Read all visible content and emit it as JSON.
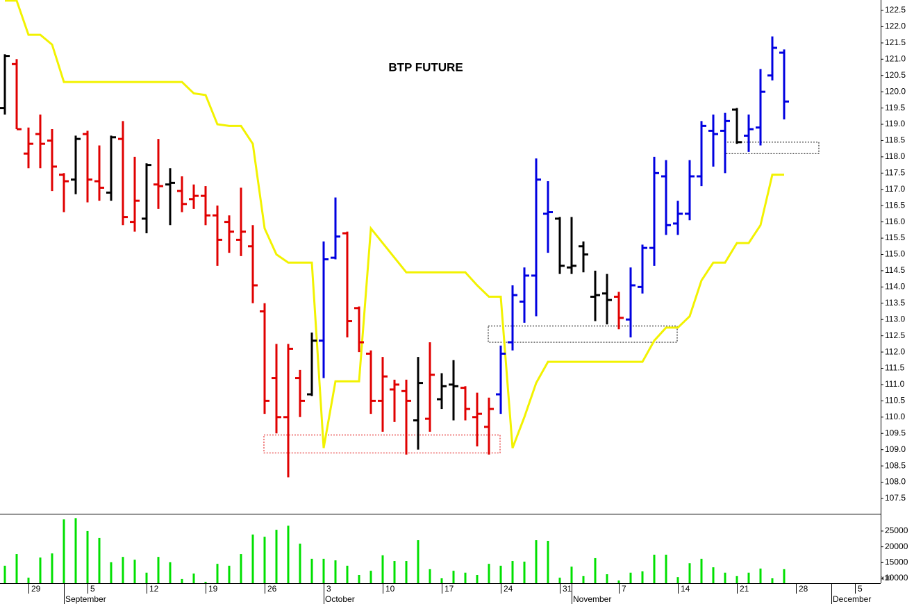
{
  "chart_data": {
    "type": "ohlc",
    "title": "BTP FUTURE",
    "categories": [
      null,
      null,
      "29",
      null,
      null,
      null,
      null,
      "5",
      null,
      null,
      null,
      null,
      "12",
      null,
      null,
      null,
      null,
      "19",
      null,
      null,
      null,
      null,
      "26",
      null,
      null,
      null,
      null,
      "3",
      null,
      null,
      null,
      null,
      "10",
      null,
      null,
      null,
      null,
      "17",
      null,
      null,
      null,
      null,
      "24",
      null,
      null,
      null,
      null,
      "31",
      null,
      null,
      null,
      null,
      "7",
      null,
      null,
      null,
      null,
      "14",
      null,
      null,
      null,
      null,
      "21",
      null,
      null,
      null,
      null,
      "28",
      null,
      null,
      null,
      null,
      "5",
      null,
      null
    ],
    "month_categories": [
      null,
      null,
      null,
      null,
      null,
      "September",
      null,
      null,
      null,
      null,
      null,
      null,
      null,
      null,
      null,
      null,
      null,
      null,
      null,
      null,
      null,
      null,
      null,
      null,
      null,
      null,
      null,
      "October",
      null,
      null,
      null,
      null,
      null,
      null,
      null,
      null,
      null,
      null,
      null,
      null,
      null,
      null,
      null,
      null,
      null,
      null,
      null,
      null,
      "November",
      null,
      null,
      null,
      null,
      null,
      null,
      null,
      null,
      null,
      null,
      null,
      null,
      null,
      null,
      null,
      null,
      null,
      null,
      null,
      null,
      null,
      "December",
      null,
      null,
      null,
      null
    ],
    "open": [
      119.5,
      120.85,
      118.1,
      118.7,
      118.5,
      117.45,
      117.3,
      118.7,
      117.25,
      116.9,
      118.55,
      116.0,
      116.1,
      117.15,
      117.15,
      116.95,
      116.7,
      116.8,
      116.2,
      116.0,
      115.45,
      115.25,
      113.25,
      111.2,
      110.0,
      111.2,
      110.7,
      112.35,
      114.9,
      115.65,
      113.35,
      111.95,
      110.5,
      110.85,
      110.8,
      109.9,
      109.95,
      110.55,
      111.0,
      110.9,
      110.0,
      109.7,
      110.7,
      112.3,
      113.55,
      114.35,
      116.25,
      116.1,
      114.6,
      115.25,
      113.7,
      113.8,
      113.7,
      113.0,
      114.0,
      115.2,
      117.4,
      115.95,
      116.25,
      117.4,
      118.8,
      118.8,
      119.45,
      118.65,
      118.9,
      120.5,
      121.2,
      null,
      null,
      null,
      null,
      null,
      null,
      null,
      null
    ],
    "high": [
      121.15,
      121.0,
      118.9,
      119.3,
      118.85,
      117.5,
      118.65,
      118.8,
      118.35,
      118.65,
      119.1,
      118.0,
      117.8,
      118.55,
      117.65,
      117.4,
      117.15,
      117.1,
      116.5,
      116.2,
      117.05,
      115.9,
      113.5,
      112.25,
      112.25,
      111.45,
      112.6,
      115.4,
      116.75,
      115.7,
      113.4,
      112.05,
      111.85,
      111.15,
      111.15,
      111.85,
      112.3,
      111.35,
      111.75,
      110.95,
      110.75,
      110.6,
      112.2,
      114.05,
      114.6,
      117.95,
      117.25,
      116.15,
      116.15,
      115.4,
      114.5,
      114.4,
      113.85,
      114.6,
      115.3,
      118.0,
      117.9,
      116.65,
      117.9,
      119.1,
      119.3,
      119.35,
      119.5,
      119.3,
      120.7,
      121.7,
      121.3,
      null,
      null,
      null,
      null,
      null,
      null,
      null,
      null
    ],
    "low": [
      119.3,
      118.85,
      117.65,
      117.65,
      116.95,
      116.3,
      116.85,
      116.6,
      116.65,
      116.65,
      115.9,
      115.7,
      115.65,
      116.4,
      115.9,
      116.3,
      116.4,
      115.9,
      114.65,
      115.05,
      114.95,
      113.5,
      110.1,
      109.5,
      108.15,
      110.0,
      110.65,
      111.2,
      114.85,
      112.45,
      112.0,
      110.1,
      109.55,
      109.85,
      108.85,
      109.0,
      109.55,
      110.25,
      109.9,
      109.9,
      109.1,
      108.85,
      110.1,
      112.05,
      112.9,
      113.1,
      115.05,
      114.4,
      114.4,
      114.45,
      112.95,
      112.85,
      112.7,
      112.45,
      113.8,
      114.65,
      115.6,
      115.6,
      116.05,
      117.1,
      117.7,
      117.5,
      118.4,
      118.15,
      118.35,
      120.35,
      119.15,
      null,
      null,
      null,
      null,
      null,
      null,
      null,
      null
    ],
    "close": [
      121.1,
      118.85,
      118.4,
      118.4,
      117.7,
      117.25,
      118.55,
      117.3,
      117.05,
      118.6,
      116.15,
      116.65,
      117.75,
      117.1,
      117.2,
      116.55,
      116.8,
      116.2,
      115.45,
      115.7,
      115.7,
      114.05,
      110.5,
      110.0,
      112.1,
      110.5,
      112.35,
      114.85,
      115.55,
      112.95,
      112.3,
      110.5,
      111.25,
      111.0,
      110.5,
      111.05,
      111.3,
      110.95,
      110.95,
      110.25,
      110.1,
      110.25,
      111.95,
      113.75,
      114.35,
      117.3,
      116.3,
      114.65,
      114.65,
      115.0,
      113.75,
      113.6,
      113.05,
      114.05,
      115.2,
      117.5,
      115.9,
      116.25,
      117.4,
      118.95,
      118.7,
      119.1,
      118.45,
      118.85,
      120.0,
      121.35,
      119.7,
      null,
      null,
      null,
      null,
      null,
      null,
      null,
      null
    ],
    "bar_colors": [
      "#000000",
      "#e00000",
      "#e00000",
      "#e00000",
      "#e00000",
      "#e00000",
      "#000000",
      "#e00000",
      "#e00000",
      "#000000",
      "#e00000",
      "#e00000",
      "#000000",
      "#e00000",
      "#000000",
      "#e00000",
      "#e00000",
      "#e00000",
      "#e00000",
      "#e00000",
      "#e00000",
      "#e00000",
      "#e00000",
      "#e00000",
      "#e00000",
      "#e00000",
      "#000000",
      "#0000e0",
      "#0000e0",
      "#e00000",
      "#e00000",
      "#e00000",
      "#e00000",
      "#e00000",
      "#e00000",
      "#000000",
      "#e00000",
      "#000000",
      "#000000",
      "#e00000",
      "#e00000",
      "#e00000",
      "#0000e0",
      "#0000e0",
      "#0000e0",
      "#0000e0",
      "#0000e0",
      "#000000",
      "#000000",
      "#000000",
      "#000000",
      "#000000",
      "#e00000",
      "#0000e0",
      "#0000e0",
      "#0000e0",
      "#0000e0",
      "#0000e0",
      "#0000e0",
      "#0000e0",
      "#0000e0",
      "#0000e0",
      "#000000",
      "#0000e0",
      "#0000e0",
      "#0000e0",
      "#0000e0",
      null,
      null,
      null,
      null,
      null,
      null,
      null,
      null
    ],
    "stop_line": {
      "color": "#f2f200",
      "values": [
        122.8,
        122.8,
        121.75,
        121.75,
        121.45,
        120.3,
        120.3,
        120.3,
        120.3,
        120.3,
        120.3,
        120.3,
        120.3,
        120.3,
        120.3,
        120.3,
        119.95,
        119.9,
        119.0,
        118.95,
        118.95,
        118.4,
        115.8,
        115.0,
        114.75,
        114.75,
        114.75,
        109.05,
        111.1,
        111.1,
        111.1,
        115.8,
        115.35,
        114.9,
        114.45,
        114.45,
        114.45,
        114.45,
        114.45,
        114.45,
        114.05,
        113.7,
        113.7,
        109.05,
        110.0,
        111.05,
        111.7,
        111.7,
        111.7,
        111.7,
        111.7,
        111.7,
        111.7,
        111.7,
        111.7,
        112.35,
        112.75,
        112.75,
        113.1,
        114.2,
        114.75,
        114.75,
        115.35,
        115.35,
        115.9,
        117.45,
        117.45,
        null,
        null,
        null,
        null,
        null,
        null,
        null,
        null
      ]
    },
    "zones": [
      {
        "color": "#e00000",
        "y": [
          108.9,
          109.45
        ],
        "x": [
          22,
          42
        ]
      },
      {
        "color": "#000000",
        "y": [
          112.3,
          112.8
        ],
        "x": [
          41,
          57
        ]
      },
      {
        "color": "#000000",
        "y": [
          118.1,
          118.45
        ],
        "x": [
          61,
          69
        ]
      }
    ],
    "ylim": [
      107.03,
      122.82
    ],
    "yticks": [
      107.5,
      {
        "value": 108,
        "label": "108.0"
      },
      108.5,
      {
        "value": 109,
        "label": "109.0"
      },
      109.5,
      {
        "value": 110,
        "label": "110.0"
      },
      110.5,
      {
        "value": 111,
        "label": "111.0"
      },
      111.5,
      {
        "value": 112,
        "label": "112.0"
      },
      112.5,
      {
        "value": 113,
        "label": "113.0"
      },
      113.5,
      {
        "value": 114,
        "label": "114.0"
      },
      114.5,
      {
        "value": 115,
        "label": "115.0"
      },
      115.5,
      {
        "value": 116,
        "label": "116.0"
      },
      116.5,
      {
        "value": 117,
        "label": "117.0"
      },
      117.5,
      {
        "value": 118,
        "label": "118.0"
      },
      118.5,
      {
        "value": 119,
        "label": "119.0"
      },
      119.5,
      {
        "value": 120,
        "label": "120.0"
      },
      120.5,
      {
        "value": 121,
        "label": "121.0"
      },
      121.5,
      {
        "value": 122,
        "label": "122.0"
      },
      122.5
    ],
    "volume": {
      "color": "#00e000",
      "unit_label": "x10",
      "values": [
        14000,
        17700,
        10200,
        16600,
        17900,
        28700,
        29100,
        25000,
        22800,
        15100,
        16800,
        15900,
        11800,
        16800,
        15100,
        9800,
        11500,
        8900,
        14600,
        14000,
        17700,
        23900,
        23200,
        25400,
        26700,
        21000,
        16200,
        16200,
        15700,
        14000,
        11100,
        12400,
        17300,
        15500,
        15500,
        22100,
        12900,
        10000,
        12400,
        11800,
        11100,
        14600,
        14000,
        15500,
        15300,
        22100,
        21900,
        10200,
        13700,
        10700,
        16400,
        11300,
        9300,
        11800,
        12200,
        17500,
        17500,
        10400,
        14800,
        16200,
        13500,
        11800,
        10700,
        11800,
        13100,
        10000,
        12900,
        null,
        null,
        null,
        null,
        null,
        null,
        null,
        null
      ],
      "ylim": [
        8460,
        30490
      ],
      "yticks": [
        10000,
        15000,
        20000,
        25000
      ]
    }
  }
}
